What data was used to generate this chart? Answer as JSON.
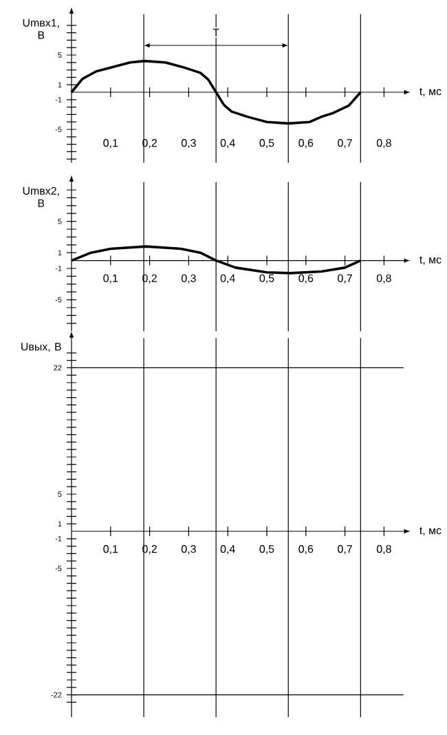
{
  "chart_data": [
    {
      "type": "line",
      "xlabel": "t, мс",
      "ylabel": "Umвх1, В",
      "series": [
        {
          "color": "#000000",
          "x": [
            0,
            0.028,
            0.063,
            0.1,
            0.15,
            0.187,
            0.24,
            0.29,
            0.33,
            0.35,
            0.37,
            0.39,
            0.41,
            0.45,
            0.5,
            0.555,
            0.61,
            0.64,
            0.67,
            0.71,
            0.74
          ],
          "values": [
            0,
            1.8,
            2.8,
            3.3,
            4.0,
            4.2,
            4.0,
            3.3,
            2.6,
            1.7,
            0,
            -1.7,
            -2.6,
            -3.3,
            -4.0,
            -4.2,
            -4.0,
            -3.3,
            -2.8,
            -1.8,
            0
          ]
        }
      ],
      "xlim": [
        0,
        0.85
      ],
      "xticks": [
        {
          "value": 0.1,
          "label": "0,1"
        },
        {
          "value": 0.2,
          "label": "0,2"
        },
        {
          "value": 0.3,
          "label": "0,3"
        },
        {
          "value": 0.4,
          "label": "0,4"
        },
        {
          "value": 0.5,
          "label": "0,5"
        },
        {
          "value": 0.6,
          "label": "0,6"
        },
        {
          "value": 0.7,
          "label": "0,7"
        },
        {
          "value": 0.8,
          "label": "0,8"
        }
      ],
      "ylim": [
        -9.5,
        10.5
      ],
      "yticks": [
        {
          "value": -9,
          "label": null
        },
        {
          "value": -8,
          "label": null
        },
        {
          "value": -7,
          "label": null
        },
        {
          "value": -6,
          "label": null
        },
        -5,
        {
          "value": -4,
          "label": null
        },
        {
          "value": -3,
          "label": null
        },
        {
          "value": -2,
          "label": null
        },
        -1,
        1,
        {
          "value": 2,
          "label": null
        },
        {
          "value": 3,
          "label": null
        },
        {
          "value": 4,
          "label": null
        },
        5,
        {
          "value": 6,
          "label": null
        },
        {
          "value": 7,
          "label": null
        },
        {
          "value": 8,
          "label": null
        },
        {
          "value": 9,
          "label": null
        }
      ],
      "ref_lines": [
        {
          "axis": "x",
          "value": 0.185
        },
        {
          "axis": "x",
          "value": 0.37
        },
        {
          "axis": "x",
          "value": 0.555
        },
        {
          "axis": "x",
          "value": 0.74
        }
      ],
      "annotations": [
        "T"
      ]
    },
    {
      "type": "line",
      "xlabel": "t, мс",
      "ylabel": "Umвх2, В",
      "series": [
        {
          "color": "#000000",
          "x": [
            0,
            0.05,
            0.1,
            0.19,
            0.28,
            0.33,
            0.37,
            0.42,
            0.5,
            0.56,
            0.64,
            0.7,
            0.74
          ],
          "values": [
            0,
            1.0,
            1.5,
            1.8,
            1.5,
            1.0,
            0,
            -0.9,
            -1.5,
            -1.6,
            -1.4,
            -0.9,
            0
          ]
        }
      ],
      "xlim": [
        0,
        0.85
      ],
      "xticks": [
        {
          "value": 0.1,
          "label": "0,1"
        },
        {
          "value": 0.2,
          "label": "0,2"
        },
        {
          "value": 0.3,
          "label": "0,3"
        },
        {
          "value": 0.4,
          "label": "0,4"
        },
        {
          "value": 0.5,
          "label": "0,5"
        },
        {
          "value": 0.6,
          "label": "0,6"
        },
        {
          "value": 0.7,
          "label": "0,7"
        },
        {
          "value": 0.8,
          "label": "0,8"
        }
      ],
      "ylim": [
        -9,
        10
      ],
      "yticks": [
        {
          "value": -8,
          "label": null
        },
        {
          "value": -7,
          "label": null
        },
        {
          "value": -6,
          "label": null
        },
        -5,
        {
          "value": -4,
          "label": null
        },
        {
          "value": -3,
          "label": null
        },
        {
          "value": -2,
          "label": null
        },
        -1,
        1,
        {
          "value": 2,
          "label": null
        },
        {
          "value": 3,
          "label": null
        },
        {
          "value": 4,
          "label": null
        },
        5,
        {
          "value": 6,
          "label": null
        },
        {
          "value": 7,
          "label": null
        },
        {
          "value": 8,
          "label": null
        },
        {
          "value": 9,
          "label": null
        }
      ],
      "ref_lines": [
        {
          "axis": "x",
          "value": 0.185
        },
        {
          "axis": "x",
          "value": 0.37
        },
        {
          "axis": "x",
          "value": 0.555
        },
        {
          "axis": "x",
          "value": 0.74
        }
      ]
    },
    {
      "type": "line",
      "xlabel": "t, мс",
      "ylabel": "Uвых, В",
      "xlim": [
        0,
        0.85
      ],
      "xticks": [
        {
          "value": 0.1,
          "label": "0,1"
        },
        {
          "value": 0.2,
          "label": "0,2"
        },
        {
          "value": 0.3,
          "label": "0,3"
        },
        {
          "value": 0.4,
          "label": "0,4"
        },
        {
          "value": 0.5,
          "label": "0,5"
        },
        {
          "value": 0.6,
          "label": "0,6"
        },
        {
          "value": 0.7,
          "label": "0,7"
        },
        {
          "value": 0.8,
          "label": "0,8"
        }
      ],
      "ylim": [
        -25,
        26
      ],
      "yticks": [
        {
          "value": -23,
          "label": null
        },
        -22,
        {
          "value": -21,
          "label": null
        },
        {
          "value": -20,
          "label": null
        },
        {
          "value": -19,
          "label": null
        },
        {
          "value": -18,
          "label": null
        },
        {
          "value": -17,
          "label": null
        },
        {
          "value": -16,
          "label": null
        },
        {
          "value": -15,
          "label": null
        },
        {
          "value": -14,
          "label": null
        },
        {
          "value": -13,
          "label": null
        },
        {
          "value": -12,
          "label": null
        },
        {
          "value": -11,
          "label": null
        },
        {
          "value": -10,
          "label": null
        },
        {
          "value": -9,
          "label": null
        },
        {
          "value": -8,
          "label": null
        },
        {
          "value": -7,
          "label": null
        },
        {
          "value": -6,
          "label": null
        },
        -5,
        {
          "value": -4,
          "label": null
        },
        {
          "value": -3,
          "label": null
        },
        {
          "value": -2,
          "label": null
        },
        -1,
        1,
        {
          "value": 2,
          "label": null
        },
        {
          "value": 3,
          "label": null
        },
        {
          "value": 4,
          "label": null
        },
        5,
        {
          "value": 6,
          "label": null
        },
        {
          "value": 7,
          "label": null
        },
        {
          "value": 8,
          "label": null
        },
        {
          "value": 9,
          "label": null
        },
        {
          "value": 10,
          "label": null
        },
        {
          "value": 11,
          "label": null
        },
        {
          "value": 12,
          "label": null
        },
        {
          "value": 13,
          "label": null
        },
        {
          "value": 14,
          "label": null
        },
        {
          "value": 15,
          "label": null
        },
        {
          "value": 16,
          "label": null
        },
        {
          "value": 17,
          "label": null
        },
        {
          "value": 18,
          "label": null
        },
        {
          "value": 19,
          "label": null
        },
        {
          "value": 20,
          "label": null
        },
        {
          "value": 21,
          "label": null
        },
        22,
        {
          "value": 23,
          "label": null
        },
        {
          "value": 24,
          "label": null
        }
      ],
      "ref_lines": [
        {
          "axis": "y",
          "value": 22
        },
        {
          "axis": "y",
          "value": -22
        },
        {
          "axis": "x",
          "value": 0.185
        },
        {
          "axis": "x",
          "value": 0.37
        },
        {
          "axis": "x",
          "value": 0.555
        },
        {
          "axis": "x",
          "value": 0.74
        }
      ]
    }
  ]
}
